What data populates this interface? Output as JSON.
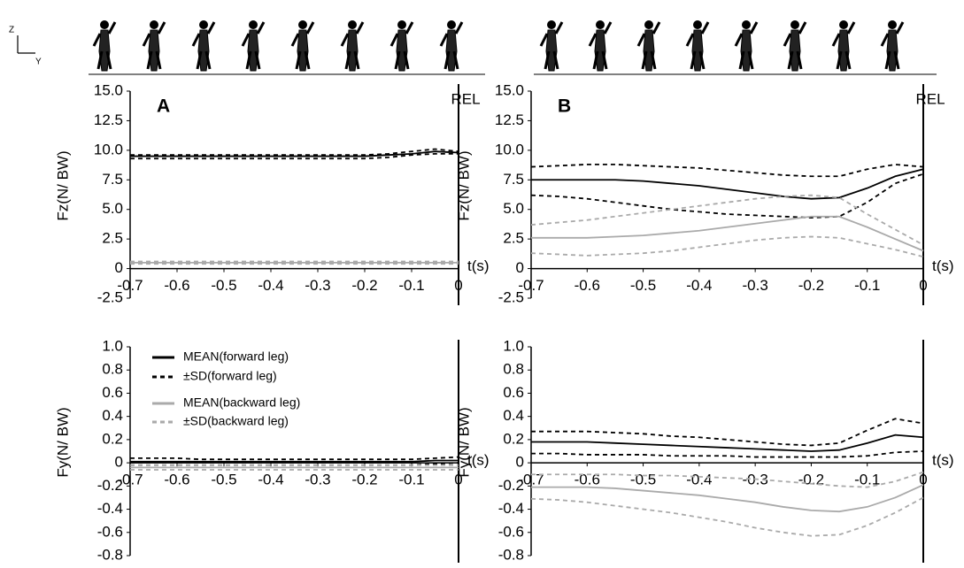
{
  "axes_icon": {
    "z": "Z",
    "y": "Y"
  },
  "chart_data": [
    {
      "type": "line",
      "title": "A",
      "ylabel": "Fz(N/ BW)",
      "xlabel": "t(s)",
      "annotation": "REL",
      "xlim": [
        -0.7,
        0
      ],
      "xticks": [
        -0.7,
        -0.6,
        -0.5,
        -0.4,
        -0.3,
        -0.2,
        -0.1,
        0
      ],
      "ylim": [
        -2.5,
        15
      ],
      "yticks": [
        -2.5,
        0,
        2.5,
        {
          "value": 5,
          "label": "5.0"
        },
        7.5,
        {
          "value": 10,
          "label": "10.0"
        },
        12.5,
        {
          "value": 15,
          "label": "15.0"
        }
      ],
      "x": [
        -0.7,
        -0.65,
        -0.6,
        -0.55,
        -0.5,
        -0.45,
        -0.4,
        -0.35,
        -0.3,
        -0.25,
        -0.2,
        -0.15,
        -0.1,
        -0.05,
        0
      ],
      "series": [
        {
          "name": "MEAN(forward leg)",
          "color": "#000000",
          "dashed": false,
          "values": [
            9.5,
            9.5,
            9.5,
            9.5,
            9.5,
            9.5,
            9.5,
            9.5,
            9.5,
            9.5,
            9.5,
            9.6,
            9.7,
            9.9,
            9.8
          ]
        },
        {
          "name": "±SD(forward leg)",
          "color": "#000000",
          "dashed": true,
          "values": [
            9.6,
            9.6,
            9.6,
            9.6,
            9.6,
            9.6,
            9.6,
            9.6,
            9.6,
            9.6,
            9.6,
            9.7,
            9.9,
            10.1,
            9.9
          ],
          "lower": [
            9.3,
            9.3,
            9.3,
            9.3,
            9.3,
            9.3,
            9.3,
            9.3,
            9.3,
            9.3,
            9.3,
            9.4,
            9.6,
            9.7,
            9.7
          ]
        },
        {
          "name": "MEAN(backward leg)",
          "color": "#aaaaaa",
          "dashed": false,
          "values": [
            0.5,
            0.5,
            0.5,
            0.5,
            0.5,
            0.5,
            0.5,
            0.5,
            0.5,
            0.5,
            0.5,
            0.5,
            0.5,
            0.5,
            0.5
          ]
        },
        {
          "name": "±SD(backward leg)",
          "color": "#aaaaaa",
          "dashed": true,
          "values": [
            0.6,
            0.6,
            0.6,
            0.6,
            0.6,
            0.6,
            0.6,
            0.6,
            0.6,
            0.6,
            0.6,
            0.6,
            0.6,
            0.6,
            0.6
          ],
          "lower": [
            0.4,
            0.4,
            0.4,
            0.4,
            0.4,
            0.4,
            0.4,
            0.4,
            0.4,
            0.4,
            0.4,
            0.4,
            0.4,
            0.4,
            0.4
          ]
        }
      ]
    },
    {
      "type": "line",
      "title": "B",
      "ylabel": "Fz(N/ BW)",
      "xlabel": "t(s)",
      "annotation": "REL",
      "xlim": [
        -0.7,
        0
      ],
      "xticks": [
        -0.7,
        -0.6,
        -0.5,
        -0.4,
        -0.3,
        -0.2,
        -0.1,
        0
      ],
      "ylim": [
        -2.5,
        15
      ],
      "yticks": [
        -2.5,
        0,
        2.5,
        {
          "value": 5,
          "label": "5.0"
        },
        7.5,
        {
          "value": 10,
          "label": "10.0"
        },
        12.5,
        {
          "value": 15,
          "label": "15.0"
        }
      ],
      "x": [
        -0.7,
        -0.65,
        -0.6,
        -0.55,
        -0.5,
        -0.45,
        -0.4,
        -0.35,
        -0.3,
        -0.25,
        -0.2,
        -0.15,
        -0.1,
        -0.05,
        0
      ],
      "series": [
        {
          "name": "MEAN(forward leg)",
          "color": "#000000",
          "dashed": false,
          "values": [
            7.5,
            7.5,
            7.5,
            7.5,
            7.4,
            7.2,
            7.0,
            6.7,
            6.4,
            6.1,
            5.9,
            6.0,
            6.8,
            7.8,
            8.4
          ]
        },
        {
          "name": "±SD(forward leg)",
          "color": "#000000",
          "dashed": true,
          "values": [
            8.6,
            8.7,
            8.8,
            8.8,
            8.7,
            8.6,
            8.5,
            8.3,
            8.1,
            7.9,
            7.8,
            7.8,
            8.4,
            8.8,
            8.6
          ],
          "lower": [
            6.2,
            6.1,
            5.9,
            5.6,
            5.3,
            5.0,
            4.8,
            4.6,
            4.5,
            4.4,
            4.3,
            4.4,
            5.6,
            7.2,
            8.0
          ]
        },
        {
          "name": "MEAN(backward leg)",
          "color": "#aaaaaa",
          "dashed": false,
          "values": [
            2.6,
            2.6,
            2.6,
            2.7,
            2.8,
            3.0,
            3.2,
            3.5,
            3.8,
            4.1,
            4.4,
            4.4,
            3.5,
            2.5,
            1.5
          ]
        },
        {
          "name": "±SD(backward leg)",
          "color": "#aaaaaa",
          "dashed": true,
          "values": [
            3.7,
            3.9,
            4.1,
            4.4,
            4.7,
            5.0,
            5.3,
            5.6,
            5.9,
            6.1,
            6.2,
            6.0,
            4.6,
            3.3,
            2.0
          ],
          "lower": [
            1.3,
            1.2,
            1.1,
            1.2,
            1.3,
            1.5,
            1.8,
            2.1,
            2.4,
            2.6,
            2.7,
            2.6,
            2.1,
            1.6,
            1.0
          ]
        }
      ]
    },
    {
      "type": "line",
      "ylabel": "Fy(N/ BW)",
      "xlabel": "t(s)",
      "legend": "upper left",
      "xlim": [
        -0.7,
        0
      ],
      "xticks": [
        -0.7,
        -0.6,
        -0.5,
        -0.4,
        -0.3,
        -0.2,
        -0.1,
        0
      ],
      "ylim": [
        -0.8,
        1.0
      ],
      "yticks": [
        -0.8,
        -0.6,
        -0.4,
        -0.2,
        0,
        0.2,
        0.4,
        0.6,
        0.8,
        {
          "value": 1,
          "label": "1.0"
        }
      ],
      "x": [
        -0.7,
        -0.65,
        -0.6,
        -0.55,
        -0.5,
        -0.45,
        -0.4,
        -0.35,
        -0.3,
        -0.25,
        -0.2,
        -0.15,
        -0.1,
        -0.05,
        0
      ],
      "series": [
        {
          "name": "MEAN(forward leg)",
          "color": "#000000",
          "dashed": false,
          "values": [
            0.01,
            0.01,
            0.01,
            0.01,
            0.01,
            0.01,
            0.01,
            0.01,
            0.01,
            0.01,
            0.01,
            0.01,
            0.01,
            0.02,
            0.02
          ]
        },
        {
          "name": "±SD(forward leg)",
          "color": "#000000",
          "dashed": true,
          "values": [
            0.04,
            0.04,
            0.04,
            0.03,
            0.03,
            0.03,
            0.03,
            0.03,
            0.03,
            0.03,
            0.03,
            0.03,
            0.03,
            0.04,
            0.05
          ],
          "lower": [
            -0.02,
            -0.02,
            -0.02,
            -0.02,
            -0.02,
            -0.02,
            -0.02,
            -0.02,
            -0.02,
            -0.02,
            -0.02,
            -0.02,
            -0.02,
            -0.01,
            0
          ]
        },
        {
          "name": "MEAN(backward leg)",
          "color": "#aaaaaa",
          "dashed": false,
          "values": [
            -0.04,
            -0.04,
            -0.04,
            -0.04,
            -0.04,
            -0.04,
            -0.04,
            -0.04,
            -0.04,
            -0.04,
            -0.04,
            -0.04,
            -0.04,
            -0.04,
            -0.04
          ]
        },
        {
          "name": "±SD(backward leg)",
          "color": "#aaaaaa",
          "dashed": true,
          "values": [
            -0.02,
            -0.02,
            -0.02,
            -0.02,
            -0.02,
            -0.02,
            -0.02,
            -0.02,
            -0.02,
            -0.02,
            -0.02,
            -0.02,
            -0.02,
            -0.02,
            -0.02
          ],
          "lower": [
            -0.06,
            -0.06,
            -0.06,
            -0.06,
            -0.06,
            -0.06,
            -0.06,
            -0.06,
            -0.06,
            -0.06,
            -0.06,
            -0.06,
            -0.06,
            -0.06,
            -0.06
          ]
        }
      ]
    },
    {
      "type": "line",
      "ylabel": "Fy(N/ BW)",
      "xlabel": "t(s)",
      "xlim": [
        -0.7,
        0
      ],
      "xticks": [
        -0.7,
        -0.6,
        -0.5,
        -0.4,
        -0.3,
        -0.2,
        -0.1,
        0
      ],
      "ylim": [
        -0.8,
        1.0
      ],
      "yticks": [
        -0.8,
        -0.6,
        -0.4,
        -0.2,
        0,
        0.2,
        0.4,
        0.6,
        0.8,
        {
          "value": 1,
          "label": "1.0"
        }
      ],
      "x": [
        -0.7,
        -0.65,
        -0.6,
        -0.55,
        -0.5,
        -0.45,
        -0.4,
        -0.35,
        -0.3,
        -0.25,
        -0.2,
        -0.15,
        -0.1,
        -0.05,
        0
      ],
      "series": [
        {
          "name": "MEAN(forward leg)",
          "color": "#000000",
          "dashed": false,
          "values": [
            0.18,
            0.18,
            0.18,
            0.17,
            0.16,
            0.15,
            0.14,
            0.13,
            0.12,
            0.11,
            0.1,
            0.11,
            0.17,
            0.24,
            0.22
          ]
        },
        {
          "name": "±SD(forward leg)",
          "color": "#000000",
          "dashed": true,
          "values": [
            0.27,
            0.27,
            0.27,
            0.26,
            0.25,
            0.23,
            0.22,
            0.2,
            0.18,
            0.16,
            0.15,
            0.17,
            0.28,
            0.38,
            0.34
          ],
          "lower": [
            0.08,
            0.08,
            0.07,
            0.07,
            0.07,
            0.06,
            0.06,
            0.06,
            0.05,
            0.05,
            0.05,
            0.05,
            0.06,
            0.09,
            0.1
          ]
        },
        {
          "name": "MEAN(backward leg)",
          "color": "#aaaaaa",
          "dashed": false,
          "values": [
            -0.21,
            -0.21,
            -0.21,
            -0.22,
            -0.24,
            -0.26,
            -0.28,
            -0.31,
            -0.34,
            -0.38,
            -0.41,
            -0.42,
            -0.38,
            -0.3,
            -0.19
          ]
        },
        {
          "name": "±SD(backward leg)",
          "color": "#aaaaaa",
          "dashed": true,
          "values": [
            -0.1,
            -0.1,
            -0.1,
            -0.1,
            -0.11,
            -0.11,
            -0.12,
            -0.13,
            -0.14,
            -0.16,
            -0.18,
            -0.2,
            -0.21,
            -0.16,
            -0.08
          ],
          "lower": [
            -0.31,
            -0.32,
            -0.34,
            -0.37,
            -0.4,
            -0.43,
            -0.47,
            -0.51,
            -0.56,
            -0.6,
            -0.63,
            -0.62,
            -0.54,
            -0.43,
            -0.3
          ]
        }
      ]
    }
  ]
}
